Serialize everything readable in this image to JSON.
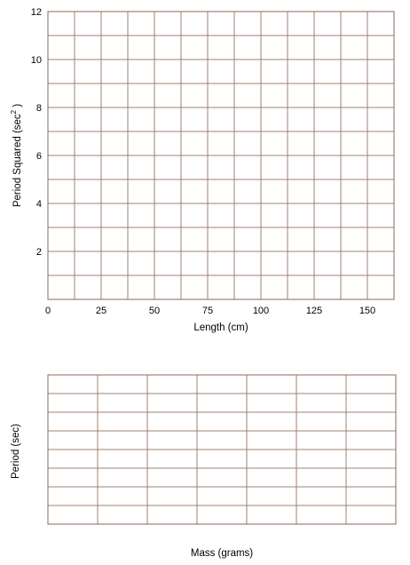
{
  "chart_data": [
    {
      "type": "scatter",
      "title": "",
      "xlabel": "Length (cm)",
      "ylabel": "Period Squared (sec",
      "ylabel_superscript": "2",
      "ylabel_close": " )",
      "xlim": [
        0,
        162.5
      ],
      "ylim": [
        0,
        12
      ],
      "x_ticks": [
        0,
        25,
        50,
        75,
        100,
        125,
        150
      ],
      "y_ticks": [
        2,
        4,
        6,
        8,
        10,
        12
      ],
      "x_grid_step": 12.5,
      "y_grid_step": 1,
      "grid": true,
      "series": [],
      "grid_color": "#a08070"
    },
    {
      "type": "scatter",
      "title": "",
      "xlabel": "Mass (grams)",
      "ylabel": "Period (sec)",
      "x_ticks": [],
      "y_ticks": [],
      "x_divisions": 7,
      "y_divisions": 8,
      "grid": true,
      "series": [],
      "grid_color": "#a08070"
    }
  ]
}
